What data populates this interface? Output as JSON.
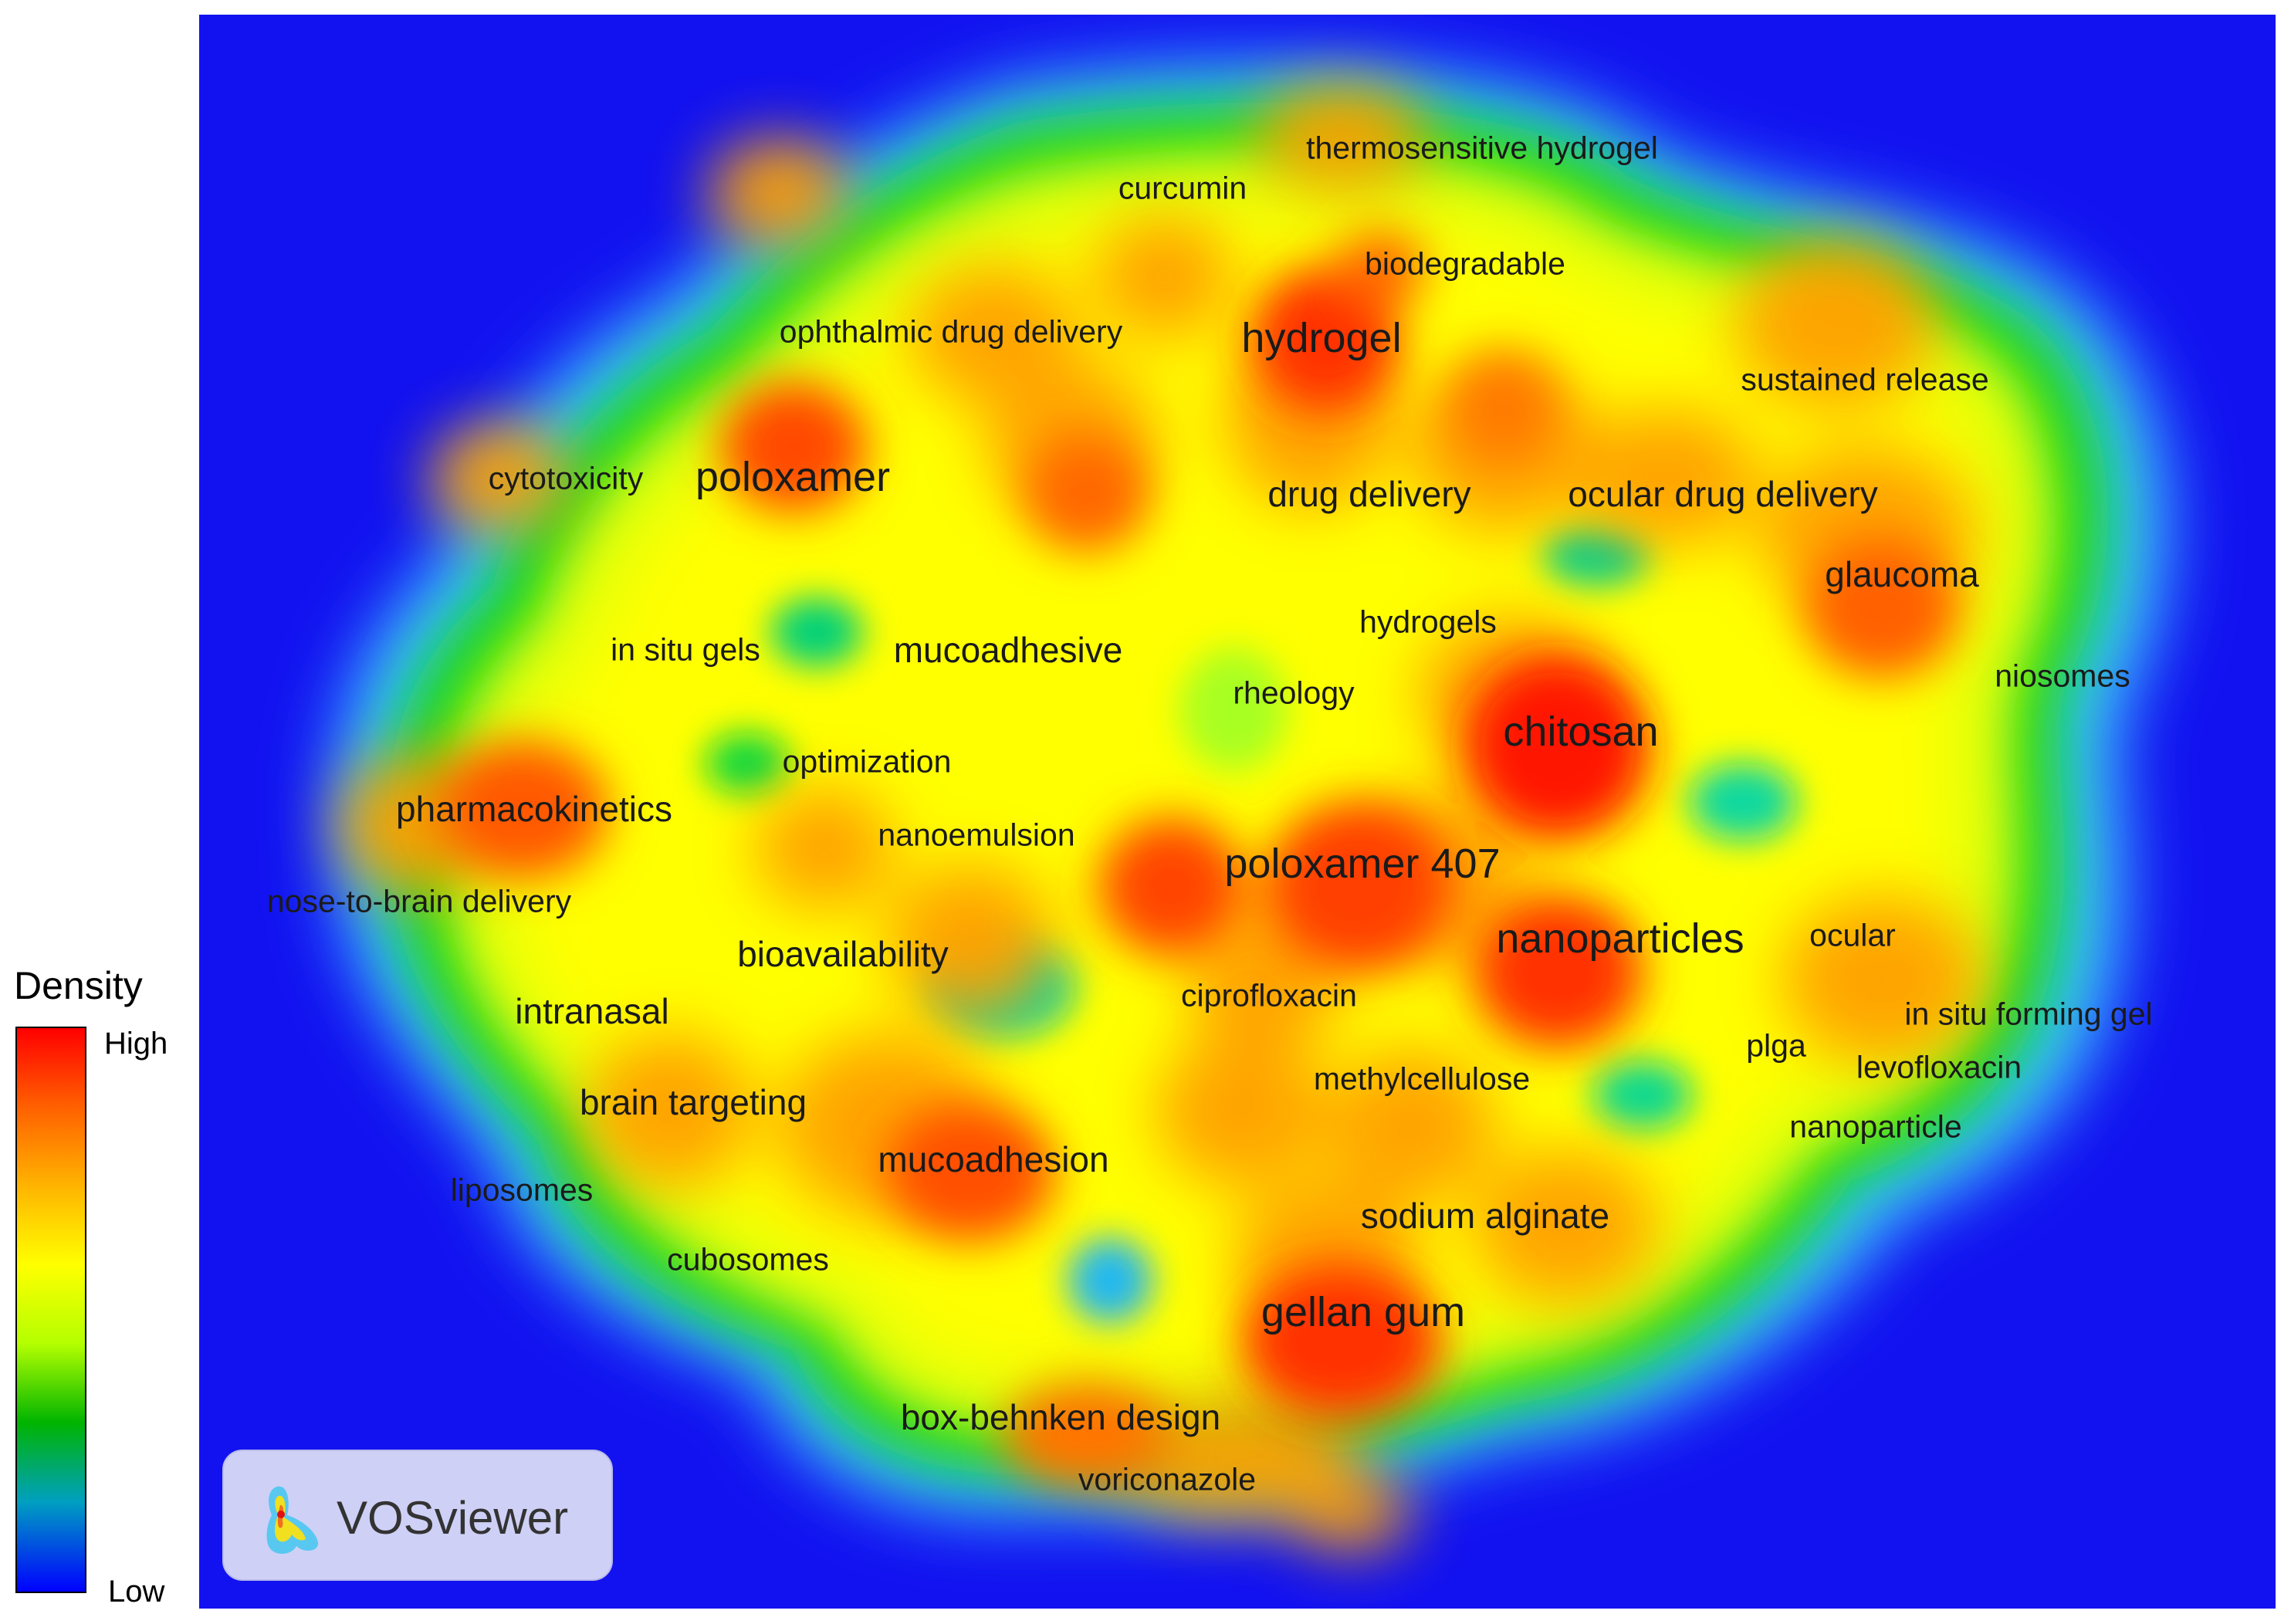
{
  "legend": {
    "title": "Density",
    "high_label": "High",
    "low_label": "Low",
    "stops": [
      "#0000ff",
      "#00a0c0",
      "#00b400",
      "#b4ff00",
      "#ffff00",
      "#ffb400",
      "#ff6000",
      "#ff0000"
    ]
  },
  "logo": {
    "text": "VOSviewer",
    "icon": "vosviewer-logo-icon"
  },
  "map": {
    "background": "#1212f0",
    "keywords": [
      {
        "label": "thermosensitive hydrogel",
        "size": "small",
        "density": 0.55
      },
      {
        "label": "curcumin",
        "size": "small",
        "density": 0.55
      },
      {
        "label": "biodegradable",
        "size": "small",
        "density": 0.65
      },
      {
        "label": "ophthalmic drug delivery",
        "size": "small",
        "density": 0.6
      },
      {
        "label": "hydrogel",
        "size": "large",
        "density": 0.95
      },
      {
        "label": "sustained release",
        "size": "small",
        "density": 0.65
      },
      {
        "label": "cytotoxicity",
        "size": "small",
        "density": 0.55
      },
      {
        "label": "poloxamer",
        "size": "large",
        "density": 0.9
      },
      {
        "label": "drug delivery",
        "size": "medium",
        "density": 0.85
      },
      {
        "label": "ocular drug delivery",
        "size": "medium",
        "density": 0.75
      },
      {
        "label": "glaucoma",
        "size": "medium",
        "density": 0.8
      },
      {
        "label": "hydrogels",
        "size": "small",
        "density": 0.7
      },
      {
        "label": "in situ gels",
        "size": "small",
        "density": 0.55
      },
      {
        "label": "mucoadhesive",
        "size": "medium",
        "density": 0.7
      },
      {
        "label": "rheology",
        "size": "small",
        "density": 0.65
      },
      {
        "label": "niosomes",
        "size": "small",
        "density": 0.55
      },
      {
        "label": "chitosan",
        "size": "large",
        "density": 1.0
      },
      {
        "label": "optimization",
        "size": "small",
        "density": 0.5
      },
      {
        "label": "pharmacokinetics",
        "size": "medium",
        "density": 0.85
      },
      {
        "label": "nanoemulsion",
        "size": "small",
        "density": 0.6
      },
      {
        "label": "poloxamer 407",
        "size": "large",
        "density": 0.9
      },
      {
        "label": "nose-to-brain delivery",
        "size": "small",
        "density": 0.55
      },
      {
        "label": "nanoparticles",
        "size": "large",
        "density": 0.9
      },
      {
        "label": "ocular",
        "size": "small",
        "density": 0.6
      },
      {
        "label": "bioavailability",
        "size": "medium",
        "density": 0.7
      },
      {
        "label": "ciprofloxacin",
        "size": "small",
        "density": 0.6
      },
      {
        "label": "intranasal",
        "size": "medium",
        "density": 0.75
      },
      {
        "label": "in situ forming gel",
        "size": "small",
        "density": 0.55
      },
      {
        "label": "plga",
        "size": "small",
        "density": 0.6
      },
      {
        "label": "levofloxacin",
        "size": "small",
        "density": 0.55
      },
      {
        "label": "methylcellulose",
        "size": "small",
        "density": 0.65
      },
      {
        "label": "brain targeting",
        "size": "medium",
        "density": 0.75
      },
      {
        "label": "nanoparticle",
        "size": "small",
        "density": 0.5
      },
      {
        "label": "mucoadhesion",
        "size": "medium",
        "density": 0.85
      },
      {
        "label": "liposomes",
        "size": "small",
        "density": 0.5
      },
      {
        "label": "sodium alginate",
        "size": "medium",
        "density": 0.75
      },
      {
        "label": "cubosomes",
        "size": "small",
        "density": 0.55
      },
      {
        "label": "gellan gum",
        "size": "large",
        "density": 0.95
      },
      {
        "label": "box-behnken design",
        "size": "medium",
        "density": 0.8
      },
      {
        "label": "voriconazole",
        "size": "small",
        "density": 0.6
      }
    ]
  }
}
